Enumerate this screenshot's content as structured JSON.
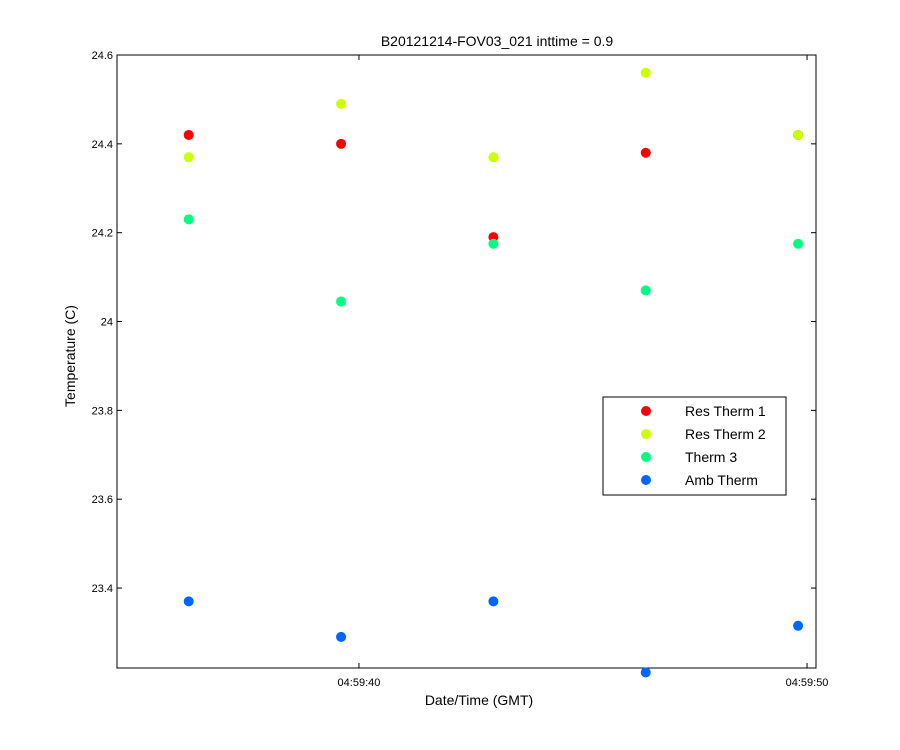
{
  "chart_data": {
    "type": "scatter",
    "title": "B20121214-FOV03_021 inttime = 0.9",
    "xlabel": "Date/Time (GMT)",
    "ylabel": "Temperature (C)",
    "x_axis_kind": "time",
    "xlim": [
      "04:59:34.6",
      "04:59:50.2"
    ],
    "ylim": [
      23.22,
      24.6
    ],
    "x_ticks": [
      {
        "t": "04:59:40",
        "label": "04:59:40"
      },
      {
        "t": "04:59:50",
        "label": "04:59:50"
      }
    ],
    "y_ticks": [
      23.4,
      23.6,
      23.8,
      24.0,
      24.2,
      24.4,
      24.6
    ],
    "y_tick_labels": [
      "23.4",
      "23.6",
      "23.8",
      "24",
      "24.2",
      "24.4",
      "24.6"
    ],
    "x": [
      "04:59:36.2",
      "04:59:39.6",
      "04:59:43.0",
      "04:59:46.4",
      "04:59:49.8"
    ],
    "series": [
      {
        "name": "Res Therm 1",
        "color": "#ff0000",
        "values": [
          24.42,
          24.4,
          24.19,
          24.38,
          24.42
        ]
      },
      {
        "name": "Res Therm 2",
        "color": "#ccff00",
        "values": [
          24.37,
          24.49,
          24.37,
          24.56,
          24.42
        ]
      },
      {
        "name": "Therm 3",
        "color": "#00ff80",
        "values": [
          24.23,
          24.045,
          24.175,
          24.07,
          24.175
        ]
      },
      {
        "name": "Amb Therm",
        "color": "#0066ff",
        "values": [
          23.37,
          23.29,
          23.37,
          23.21,
          23.315
        ]
      }
    ],
    "grid": false,
    "legend_position": "right"
  }
}
